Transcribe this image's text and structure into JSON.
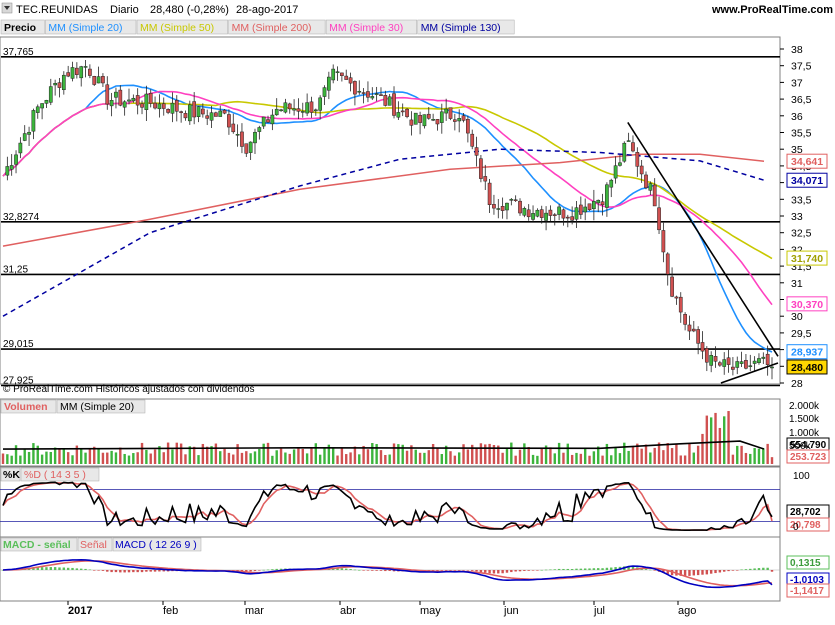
{
  "header": {
    "ticker": "TEC.REUNIDAS",
    "period": "Diario",
    "price": "28,480 (-0,28%)",
    "date": "28-ago-2017",
    "site": "www.ProRealTime.com"
  },
  "price_panel": {
    "legend": [
      {
        "label": "Precio",
        "color": "#000000"
      },
      {
        "label": "MM (Simple 20)",
        "color": "#1e90ff"
      },
      {
        "label": "MM (Simple 50)",
        "color": "#c8c800"
      },
      {
        "label": "MM (Simple 200)",
        "color": "#e06060"
      },
      {
        "label": "MM (Simple 30)",
        "color": "#ff40c0"
      },
      {
        "label": "MM (Simple 130)",
        "color": "#0000a0"
      }
    ],
    "watermark": "© ProRealTime.com  Históricos ajustados con dividendos",
    "level_labels": [
      "37,765",
      "32,8274",
      "31,25",
      "29,015",
      "27,925"
    ],
    "right_badges": [
      "34,641",
      "34,071",
      "31,740",
      "30,370",
      "28,937",
      "28,480"
    ]
  },
  "volume_panel": {
    "legend": [
      "Volumen",
      "MM (Simple 20)"
    ],
    "ticks": [
      "2.000k",
      "1.500k",
      "1.000k",
      "500k"
    ],
    "badges": [
      "554.790",
      "253.723"
    ]
  },
  "stoch_panel": {
    "legend": [
      "%K",
      "%D ( 14 3 5 )"
    ],
    "ticks": [
      "100",
      "0"
    ],
    "badges": [
      "28,702",
      "20,798"
    ]
  },
  "macd_panel": {
    "legend": [
      "MACD - señal",
      "Señal",
      "MACD ( 12 26 9 )"
    ],
    "badges": [
      "0,1315",
      "-1,0103",
      "-1,1417"
    ]
  },
  "x_axis": {
    "labels": [
      "2017",
      "feb",
      "mar",
      "abr",
      "may",
      "jun",
      "jul",
      "ago"
    ]
  },
  "chart_data": {
    "type": "line",
    "title": "TEC.REUNIDAS Diario",
    "y_ticks": [
      28,
      28.5,
      29,
      29.5,
      30,
      30.5,
      31,
      31.5,
      32,
      32.5,
      33,
      33.5,
      34,
      34.5,
      35,
      35.5,
      36,
      36.5,
      37,
      37.5,
      38
    ],
    "ylim": [
      27.6,
      38.3
    ],
    "horizontal_levels": [
      37.765,
      32.8274,
      31.25,
      29.015,
      27.925
    ],
    "close_anchors": [
      {
        "x": "2016-12-15",
        "y": 34.2
      },
      {
        "x": "2016-12-27",
        "y": 36.3
      },
      {
        "x": "2017-01-05",
        "y": 37.3
      },
      {
        "x": "2017-01-12",
        "y": 37.5
      },
      {
        "x": "2017-01-19",
        "y": 36.5
      },
      {
        "x": "2017-02-02",
        "y": 36.4
      },
      {
        "x": "2017-02-16",
        "y": 36.1
      },
      {
        "x": "2017-02-27",
        "y": 36.0
      },
      {
        "x": "2017-03-06",
        "y": 35.1
      },
      {
        "x": "2017-03-16",
        "y": 36.2
      },
      {
        "x": "2017-03-30",
        "y": 36.3
      },
      {
        "x": "2017-04-04",
        "y": 37.2
      },
      {
        "x": "2017-04-20",
        "y": 36.5
      },
      {
        "x": "2017-05-02",
        "y": 35.8
      },
      {
        "x": "2017-05-16",
        "y": 36.1
      },
      {
        "x": "2017-05-26",
        "y": 33.5
      },
      {
        "x": "2017-06-08",
        "y": 33.2
      },
      {
        "x": "2017-06-22",
        "y": 33.1
      },
      {
        "x": "2017-07-03",
        "y": 33.6
      },
      {
        "x": "2017-07-11",
        "y": 35.2
      },
      {
        "x": "2017-07-20",
        "y": 33.5
      },
      {
        "x": "2017-07-25",
        "y": 31.0
      },
      {
        "x": "2017-07-31",
        "y": 29.6
      },
      {
        "x": "2017-08-08",
        "y": 28.6
      },
      {
        "x": "2017-08-16",
        "y": 28.4
      },
      {
        "x": "2017-08-24",
        "y": 28.6
      },
      {
        "x": "2017-08-28",
        "y": 28.48
      }
    ],
    "series": [
      {
        "name": "MM (Simple 20)",
        "end_value": 28.937
      },
      {
        "name": "MM (Simple 50)",
        "end_value": 31.74
      },
      {
        "name": "MM (Simple 200)",
        "end_value": 34.641
      },
      {
        "name": "MM (Simple 30)",
        "end_value": 30.37
      },
      {
        "name": "MM (Simple 130)",
        "end_value": 34.071
      }
    ],
    "volume": {
      "ticks": [
        500000,
        1000000,
        1500000,
        2000000
      ],
      "ma20_last": 554790,
      "last": 253723
    },
    "stochastic": {
      "k_last": 28.702,
      "d_last": 20.798,
      "range": [
        0,
        100
      ]
    },
    "macd": {
      "hist_last": 0.1315,
      "signal_last": -1.0103,
      "macd_last": -1.1417
    }
  }
}
